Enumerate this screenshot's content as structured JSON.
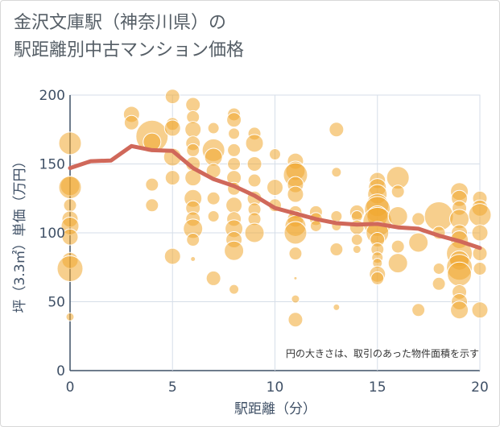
{
  "title_lines": [
    "金沢文庫駅（神奈川県）の",
    "駅距離別中古マンション価格"
  ],
  "note": "円の大きさは、取引のあった物件面積を示す",
  "colors": {
    "bubble_fill": "#f0a830",
    "bubble_stroke": "#ffffff",
    "line": "#d0685a",
    "grid": "#d6dee8",
    "axis": "#3f5066",
    "text": "#555e66"
  },
  "chart_data": {
    "type": "scatter",
    "xlabel": "駅距離（分）",
    "ylabel": "坪（3.3㎡）単価（万円）",
    "xlim": [
      0,
      20
    ],
    "ylim": [
      0,
      200
    ],
    "x_ticks": [
      0,
      5,
      10,
      15,
      20
    ],
    "y_ticks": [
      0,
      50,
      100,
      150,
      200
    ],
    "grid": true,
    "bubble_note": "円の大きさは、取引のあった物件面積を示す",
    "trend": {
      "x": [
        0,
        1,
        2,
        3,
        4,
        5,
        6,
        7,
        8,
        9,
        10,
        11,
        12,
        13,
        14,
        15,
        16,
        17,
        18,
        19,
        20
      ],
      "y": [
        147,
        152,
        152.5,
        163,
        160,
        159.5,
        147,
        139,
        134,
        127,
        118,
        114,
        110,
        107,
        106,
        106.5,
        104,
        103,
        98,
        94,
        89
      ]
    },
    "points": [
      {
        "x": 0,
        "y": 165,
        "s": 14
      },
      {
        "x": 0,
        "y": 134,
        "s": 12
      },
      {
        "x": 0,
        "y": 133,
        "s": 14
      },
      {
        "x": 0,
        "y": 120,
        "s": 8
      },
      {
        "x": 0,
        "y": 110,
        "s": 10
      },
      {
        "x": 0,
        "y": 105,
        "s": 11
      },
      {
        "x": 0,
        "y": 97,
        "s": 10
      },
      {
        "x": 0,
        "y": 80,
        "s": 10
      },
      {
        "x": 0,
        "y": 74,
        "s": 16
      },
      {
        "x": 0,
        "y": 39,
        "s": 5
      },
      {
        "x": 3,
        "y": 186,
        "s": 10
      },
      {
        "x": 3,
        "y": 180,
        "s": 9
      },
      {
        "x": 4,
        "y": 170,
        "s": 20
      },
      {
        "x": 4,
        "y": 166,
        "s": 11
      },
      {
        "x": 4,
        "y": 135,
        "s": 8
      },
      {
        "x": 4,
        "y": 120,
        "s": 8
      },
      {
        "x": 5,
        "y": 199,
        "s": 9
      },
      {
        "x": 5,
        "y": 179,
        "s": 8
      },
      {
        "x": 5,
        "y": 176,
        "s": 10
      },
      {
        "x": 5,
        "y": 155,
        "s": 11
      },
      {
        "x": 5,
        "y": 140,
        "s": 9
      },
      {
        "x": 5,
        "y": 83,
        "s": 10
      },
      {
        "x": 6,
        "y": 193,
        "s": 9
      },
      {
        "x": 6,
        "y": 184,
        "s": 8
      },
      {
        "x": 6,
        "y": 175,
        "s": 10
      },
      {
        "x": 6,
        "y": 165,
        "s": 9
      },
      {
        "x": 6,
        "y": 160,
        "s": 8
      },
      {
        "x": 6,
        "y": 150,
        "s": 9
      },
      {
        "x": 6,
        "y": 140,
        "s": 10
      },
      {
        "x": 6,
        "y": 125,
        "s": 11
      },
      {
        "x": 6,
        "y": 118,
        "s": 9
      },
      {
        "x": 6,
        "y": 110,
        "s": 9
      },
      {
        "x": 6,
        "y": 103,
        "s": 12
      },
      {
        "x": 6,
        "y": 95,
        "s": 8
      },
      {
        "x": 6,
        "y": 81,
        "s": 3
      },
      {
        "x": 7,
        "y": 176,
        "s": 7
      },
      {
        "x": 7,
        "y": 160,
        "s": 14
      },
      {
        "x": 7,
        "y": 155,
        "s": 11
      },
      {
        "x": 7,
        "y": 145,
        "s": 9
      },
      {
        "x": 7,
        "y": 125,
        "s": 8
      },
      {
        "x": 7,
        "y": 112,
        "s": 7
      },
      {
        "x": 7,
        "y": 67,
        "s": 9
      },
      {
        "x": 8,
        "y": 186,
        "s": 8
      },
      {
        "x": 8,
        "y": 182,
        "s": 9
      },
      {
        "x": 8,
        "y": 172,
        "s": 7
      },
      {
        "x": 8,
        "y": 160,
        "s": 8
      },
      {
        "x": 8,
        "y": 150,
        "s": 8
      },
      {
        "x": 8,
        "y": 140,
        "s": 9
      },
      {
        "x": 8,
        "y": 132,
        "s": 8
      },
      {
        "x": 8,
        "y": 120,
        "s": 10
      },
      {
        "x": 8,
        "y": 110,
        "s": 9
      },
      {
        "x": 8,
        "y": 103,
        "s": 11
      },
      {
        "x": 8,
        "y": 95,
        "s": 10
      },
      {
        "x": 8,
        "y": 87,
        "s": 12
      },
      {
        "x": 8,
        "y": 59,
        "s": 6
      },
      {
        "x": 9,
        "y": 172,
        "s": 8
      },
      {
        "x": 9,
        "y": 165,
        "s": 11
      },
      {
        "x": 9,
        "y": 150,
        "s": 9
      },
      {
        "x": 9,
        "y": 138,
        "s": 8
      },
      {
        "x": 9,
        "y": 125,
        "s": 9
      },
      {
        "x": 9,
        "y": 117,
        "s": 8
      },
      {
        "x": 9,
        "y": 110,
        "s": 8
      },
      {
        "x": 9,
        "y": 100,
        "s": 12
      },
      {
        "x": 10,
        "y": 157,
        "s": 7
      },
      {
        "x": 10,
        "y": 133,
        "s": 10
      },
      {
        "x": 10,
        "y": 120,
        "s": 8
      },
      {
        "x": 11,
        "y": 152,
        "s": 10
      },
      {
        "x": 11,
        "y": 145,
        "s": 12
      },
      {
        "x": 11,
        "y": 142,
        "s": 15
      },
      {
        "x": 11,
        "y": 135,
        "s": 10
      },
      {
        "x": 11,
        "y": 128,
        "s": 10
      },
      {
        "x": 11,
        "y": 115,
        "s": 8
      },
      {
        "x": 11,
        "y": 110,
        "s": 10
      },
      {
        "x": 11,
        "y": 105,
        "s": 13
      },
      {
        "x": 11,
        "y": 100,
        "s": 14
      },
      {
        "x": 11,
        "y": 85,
        "s": 8
      },
      {
        "x": 11,
        "y": 52,
        "s": 5
      },
      {
        "x": 11,
        "y": 37,
        "s": 9
      },
      {
        "x": 11,
        "y": 67,
        "s": 2
      },
      {
        "x": 12,
        "y": 115,
        "s": 8
      },
      {
        "x": 12,
        "y": 110,
        "s": 8
      },
      {
        "x": 12,
        "y": 105,
        "s": 7
      },
      {
        "x": 13,
        "y": 175,
        "s": 9
      },
      {
        "x": 13,
        "y": 144,
        "s": 6
      },
      {
        "x": 13,
        "y": 112,
        "s": 7
      },
      {
        "x": 13,
        "y": 105,
        "s": 6
      },
      {
        "x": 13,
        "y": 88,
        "s": 8
      },
      {
        "x": 13,
        "y": 46,
        "s": 4
      },
      {
        "x": 14,
        "y": 115,
        "s": 9
      },
      {
        "x": 14,
        "y": 112,
        "s": 7
      },
      {
        "x": 14,
        "y": 104,
        "s": 9
      },
      {
        "x": 14,
        "y": 95,
        "s": 7
      },
      {
        "x": 14,
        "y": 88,
        "s": 5
      },
      {
        "x": 15,
        "y": 138,
        "s": 10
      },
      {
        "x": 15,
        "y": 133,
        "s": 11
      },
      {
        "x": 15,
        "y": 128,
        "s": 12
      },
      {
        "x": 15,
        "y": 120,
        "s": 14
      },
      {
        "x": 15,
        "y": 117,
        "s": 16
      },
      {
        "x": 15,
        "y": 112,
        "s": 13
      },
      {
        "x": 15,
        "y": 108,
        "s": 18
      },
      {
        "x": 15,
        "y": 100,
        "s": 14
      },
      {
        "x": 15,
        "y": 95,
        "s": 9
      },
      {
        "x": 15,
        "y": 88,
        "s": 8
      },
      {
        "x": 15,
        "y": 82,
        "s": 7
      },
      {
        "x": 15,
        "y": 78,
        "s": 6
      },
      {
        "x": 15,
        "y": 70,
        "s": 10
      },
      {
        "x": 15,
        "y": 67,
        "s": 8
      },
      {
        "x": 16,
        "y": 140,
        "s": 14
      },
      {
        "x": 16,
        "y": 130,
        "s": 8
      },
      {
        "x": 16,
        "y": 112,
        "s": 12
      },
      {
        "x": 16,
        "y": 90,
        "s": 8
      },
      {
        "x": 16,
        "y": 78,
        "s": 12
      },
      {
        "x": 17,
        "y": 110,
        "s": 8
      },
      {
        "x": 17,
        "y": 93,
        "s": 12
      },
      {
        "x": 17,
        "y": 44,
        "s": 8
      },
      {
        "x": 18,
        "y": 112,
        "s": 18
      },
      {
        "x": 18,
        "y": 100,
        "s": 8
      },
      {
        "x": 18,
        "y": 74,
        "s": 7
      },
      {
        "x": 18,
        "y": 63,
        "s": 8
      },
      {
        "x": 19,
        "y": 130,
        "s": 11
      },
      {
        "x": 19,
        "y": 125,
        "s": 10
      },
      {
        "x": 19,
        "y": 118,
        "s": 9
      },
      {
        "x": 19,
        "y": 110,
        "s": 12
      },
      {
        "x": 19,
        "y": 100,
        "s": 10
      },
      {
        "x": 19,
        "y": 95,
        "s": 11
      },
      {
        "x": 19,
        "y": 85,
        "s": 16
      },
      {
        "x": 19,
        "y": 80,
        "s": 12
      },
      {
        "x": 19,
        "y": 75,
        "s": 16
      },
      {
        "x": 19,
        "y": 70,
        "s": 15
      },
      {
        "x": 19,
        "y": 57,
        "s": 9
      },
      {
        "x": 19,
        "y": 50,
        "s": 10
      },
      {
        "x": 19,
        "y": 44,
        "s": 11
      },
      {
        "x": 20,
        "y": 125,
        "s": 9
      },
      {
        "x": 20,
        "y": 118,
        "s": 10
      },
      {
        "x": 20,
        "y": 113,
        "s": 14
      },
      {
        "x": 20,
        "y": 100,
        "s": 10
      },
      {
        "x": 20,
        "y": 85,
        "s": 9
      },
      {
        "x": 20,
        "y": 74,
        "s": 8
      },
      {
        "x": 20,
        "y": 44,
        "s": 10
      }
    ]
  }
}
